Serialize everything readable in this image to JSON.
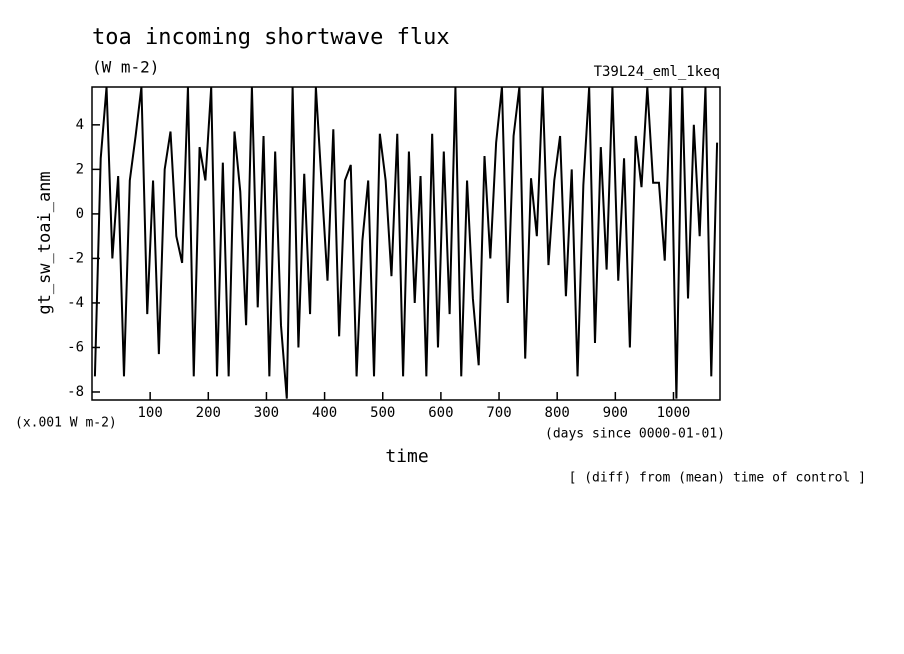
{
  "chart_data": {
    "type": "line",
    "title": "toa incoming shortwave flux",
    "subtitle": "(W m-2)",
    "run_label": "T39L24_eml_1keq",
    "y_label": "gt_sw_toai_anm",
    "y_unit": "(x.001 W m-2)",
    "x_label": "time",
    "x_unit": "(days since 0000-01-01)",
    "annotation": "[ (diff) from (mean) time of control ]",
    "xlim": [
      0,
      1080
    ],
    "ylim": [
      -8.36,
      5.7
    ],
    "xticks": [
      100,
      200,
      300,
      400,
      500,
      600,
      700,
      800,
      900,
      1000
    ],
    "yticks": [
      -8,
      -6,
      -4,
      -2,
      0,
      2,
      4
    ],
    "series": [
      {
        "color": "#000000",
        "x": [
          5,
          15,
          25,
          35,
          45,
          55,
          65,
          75,
          85,
          95,
          105,
          115,
          125,
          135,
          145,
          155,
          165,
          175,
          185,
          195,
          205,
          215,
          225,
          235,
          245,
          255,
          265,
          275,
          285,
          295,
          305,
          315,
          325,
          335,
          345,
          355,
          365,
          375,
          385,
          395,
          405,
          415,
          425,
          435,
          445,
          455,
          465,
          475,
          485,
          495,
          505,
          515,
          525,
          535,
          545,
          555,
          565,
          575,
          585,
          595,
          605,
          615,
          625,
          635,
          645,
          655,
          665,
          675,
          685,
          695,
          705,
          715,
          725,
          735,
          745,
          755,
          765,
          775,
          785,
          795,
          805,
          815,
          825,
          835,
          845,
          855,
          865,
          875,
          885,
          895,
          905,
          915,
          925,
          935,
          945,
          955,
          965,
          975,
          985,
          995,
          1005,
          1015,
          1025,
          1035,
          1045,
          1055,
          1065,
          1075
        ],
        "values": [
          -7.3,
          2.5,
          5.7,
          -2,
          1.7,
          -7.3,
          1.5,
          3.5,
          5.7,
          -4.5,
          1.5,
          -6.3,
          2,
          3.7,
          -1,
          -2.2,
          5.7,
          -7.3,
          3,
          1.5,
          5.7,
          -7.3,
          2.3,
          -7.3,
          3.7,
          1,
          -5,
          5.7,
          -4.2,
          3.5,
          -7.3,
          2.8,
          -5,
          -8.3,
          5.7,
          -6,
          1.8,
          -4.5,
          5.7,
          1.3,
          -3,
          3.8,
          -5.5,
          1.5,
          2.2,
          -7.3,
          -1.2,
          1.5,
          -7.3,
          3.6,
          1.5,
          -2.8,
          3.6,
          -7.3,
          2.8,
          -4,
          1.7,
          -7.3,
          3.6,
          -6,
          2.8,
          -4.5,
          5.7,
          -7.3,
          1.5,
          -3.8,
          -6.8,
          2.6,
          -2,
          3.2,
          5.7,
          -4,
          3.5,
          5.7,
          -6.5,
          1.6,
          -1,
          5.7,
          -2.3,
          1.5,
          3.5,
          -3.7,
          2,
          -7.3,
          1.3,
          5.7,
          -5.8,
          3,
          -2.5,
          5.7,
          -3,
          2.5,
          -6,
          3.5,
          1.2,
          5.7,
          1.4,
          1.4,
          -2.1,
          5.7,
          -8.3,
          5.7,
          -3.8,
          4,
          -1,
          5.7,
          -7.3,
          3.2
        ]
      }
    ]
  }
}
